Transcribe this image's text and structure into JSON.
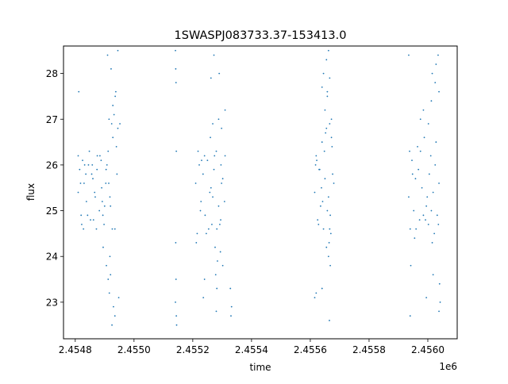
{
  "chart_data": {
    "type": "scatter",
    "title": "1SWASPJ083733.37-153413.0",
    "xlabel": "time",
    "ylabel": "flux",
    "x_offset_label": "1e6",
    "xlim": [
      2.45476,
      2.4561
    ],
    "ylim": [
      22.2,
      28.6
    ],
    "grid": false,
    "legend": "none",
    "marker_color": "#1f77b4",
    "x_ticks": [
      {
        "value": 2.4548,
        "label": "2.4548"
      },
      {
        "value": 2.455,
        "label": "2.4550"
      },
      {
        "value": 2.4552,
        "label": "2.4552"
      },
      {
        "value": 2.4554,
        "label": "2.4554"
      },
      {
        "value": 2.4556,
        "label": "2.4556"
      },
      {
        "value": 2.4558,
        "label": "2.4558"
      },
      {
        "value": 2.456,
        "label": "2.4560"
      }
    ],
    "y_ticks": [
      {
        "value": 23,
        "label": "23"
      },
      {
        "value": 24,
        "label": "24"
      },
      {
        "value": 25,
        "label": "25"
      },
      {
        "value": 26,
        "label": "26"
      },
      {
        "value": 27,
        "label": "27"
      },
      {
        "value": 28,
        "label": "28"
      }
    ],
    "series": [
      {
        "x": [
          2.45481,
          2.454815,
          2.45482,
          2.454825,
          2.45483,
          2.454838,
          2.454845,
          2.454852,
          2.45486,
          2.454868,
          2.454875,
          2.454882,
          2.45489,
          2.454898,
          2.454905,
          2.454912,
          2.45492,
          2.454928,
          2.454935,
          2.454942,
          2.45481,
          2.454822,
          2.454836,
          2.454848,
          2.454862,
          2.454874,
          2.454888,
          2.4549,
          2.454914,
          2.454926,
          2.45494,
          2.454818,
          2.454842,
          2.454866,
          2.454894,
          2.454918,
          2.454832,
          2.454856,
          2.454884,
          2.454908,
          2.454828,
          2.454872,
          2.454904,
          2.454924,
          2.454858,
          2.454892,
          2.454906,
          2.454912,
          2.454916,
          2.45492,
          2.454895,
          2.454932,
          2.454938,
          2.454928,
          2.454915,
          2.454945,
          2.454812,
          2.454922,
          2.454936,
          2.454952,
          2.45491,
          2.454945,
          2.45493,
          2.454935,
          2.454918,
          2.454925,
          2.454948
        ],
        "y": [
          25.4,
          25.9,
          24.9,
          26.1,
          25.6,
          25.2,
          26.0,
          24.8,
          25.7,
          25.3,
          26.2,
          25.0,
          25.5,
          24.7,
          25.9,
          26.3,
          25.1,
          26.6,
          24.6,
          25.8,
          26.2,
          24.7,
          25.8,
          26.3,
          24.8,
          25.9,
          26.1,
          25.1,
          25.6,
          24.6,
          26.4,
          25.6,
          24.9,
          25.4,
          24.9,
          25.3,
          26.0,
          25.8,
          26.2,
          26.0,
          24.6,
          24.6,
          25.6,
          26.9,
          26.0,
          25.2,
          23.8,
          23.5,
          23.2,
          23.6,
          24.2,
          27.1,
          27.6,
          27.3,
          27.0,
          26.8,
          27.6,
          28.1,
          27.5,
          26.9,
          28.4,
          28.5,
          22.9,
          22.7,
          24.0,
          22.5,
          23.1
        ]
      },
      {
        "x": [
          2.455141,
          2.455142,
          2.455143,
          2.455144,
          2.455142,
          2.455143,
          2.455141,
          2.455144,
          2.455145
        ],
        "y": [
          28.5,
          28.1,
          27.8,
          26.3,
          24.3,
          23.5,
          23.0,
          22.7,
          22.5
        ]
      },
      {
        "x": [
          2.45521,
          2.455215,
          2.455222,
          2.455228,
          2.455235,
          2.455242,
          2.45525,
          2.455258,
          2.455265,
          2.455272,
          2.45528,
          2.455288,
          2.455295,
          2.455302,
          2.45531,
          2.455212,
          2.455226,
          2.45524,
          2.455254,
          2.455268,
          2.455282,
          2.455296,
          2.455308,
          2.455218,
          2.455246,
          2.455274,
          2.455292,
          2.45523,
          2.455262,
          2.455298,
          2.455276,
          2.455284,
          2.455278,
          2.455282,
          2.45526,
          2.455268,
          2.455288,
          2.455298,
          2.45531,
          2.455272,
          2.45529,
          2.455262,
          2.455328,
          2.455332,
          2.45533,
          2.45528,
          2.45524,
          2.455236,
          2.455302,
          2.455294
        ],
        "y": [
          25.6,
          24.5,
          26.0,
          25.2,
          25.8,
          24.9,
          26.1,
          25.4,
          24.7,
          25.9,
          26.3,
          25.1,
          24.8,
          25.7,
          26.2,
          24.3,
          25.0,
          26.2,
          24.6,
          25.3,
          24.6,
          26.0,
          25.2,
          26.3,
          24.5,
          26.2,
          24.7,
          26.1,
          25.5,
          25.6,
          24.2,
          23.9,
          23.6,
          23.3,
          26.6,
          26.9,
          27.0,
          26.8,
          27.2,
          28.4,
          28.0,
          27.9,
          23.3,
          22.9,
          22.7,
          22.8,
          23.5,
          23.1,
          23.8,
          24.1
        ]
      },
      {
        "x": [
          2.455615,
          2.45562,
          2.455625,
          2.45563,
          2.455635,
          2.45564,
          2.455645,
          2.45565,
          2.455655,
          2.455662,
          2.455668,
          2.455674,
          2.45568,
          2.455618,
          2.455628,
          2.455638,
          2.455648,
          2.455658,
          2.45567,
          2.455676,
          2.455622,
          2.455642,
          2.455664,
          2.455672,
          2.455632,
          2.455652,
          2.455666,
          2.455655,
          2.455662,
          2.455668,
          2.45565,
          2.455658,
          2.455666,
          2.455672,
          2.45564,
          2.455645,
          2.455655,
          2.455662,
          2.455666,
          2.455658,
          2.45564,
          2.455665,
          2.455615,
          2.45562
        ],
        "y": [
          25.4,
          26.2,
          24.8,
          25.9,
          25.1,
          26.5,
          24.6,
          25.7,
          26.8,
          25.3,
          24.9,
          26.4,
          25.6,
          26.0,
          24.7,
          25.5,
          26.3,
          25.0,
          24.5,
          25.8,
          26.1,
          25.2,
          24.3,
          26.6,
          25.9,
          26.7,
          24.6,
          24.2,
          24.0,
          23.8,
          27.2,
          27.5,
          26.9,
          27.0,
          27.7,
          28.0,
          28.3,
          28.5,
          27.9,
          27.6,
          23.3,
          22.6,
          23.1,
          23.2
        ]
      },
      {
        "x": [
          2.455935,
          2.45594,
          2.455946,
          2.455952,
          2.455958,
          2.455965,
          2.455972,
          2.45598,
          2.455988,
          2.455995,
          2.456002,
          2.45601,
          2.456018,
          2.456025,
          2.456032,
          2.456038,
          2.455938,
          2.455955,
          2.455968,
          2.455985,
          2.455998,
          2.456012,
          2.456028,
          2.456036,
          2.455948,
          2.455975,
          2.456005,
          2.456022,
          2.45596,
          2.455992,
          2.456015,
          2.455975,
          2.455985,
          2.456002,
          2.456012,
          2.456025,
          2.456015,
          2.456028,
          2.456035,
          2.455935,
          2.456038,
          2.456018,
          2.455995,
          2.45604,
          2.455942,
          2.456042,
          2.45594,
          2.456038
        ],
        "y": [
          25.3,
          24.6,
          26.1,
          25.0,
          25.7,
          26.4,
          24.8,
          25.5,
          26.6,
          25.1,
          24.7,
          26.2,
          25.4,
          26.0,
          24.9,
          25.6,
          26.3,
          24.4,
          25.9,
          24.9,
          25.3,
          25.0,
          26.5,
          24.7,
          25.8,
          26.3,
          25.8,
          24.5,
          24.6,
          24.8,
          24.3,
          27.0,
          27.2,
          26.9,
          27.4,
          27.8,
          28.0,
          28.2,
          28.4,
          28.4,
          27.6,
          23.6,
          23.1,
          23.4,
          23.8,
          23.0,
          22.7,
          22.8
        ]
      }
    ]
  }
}
